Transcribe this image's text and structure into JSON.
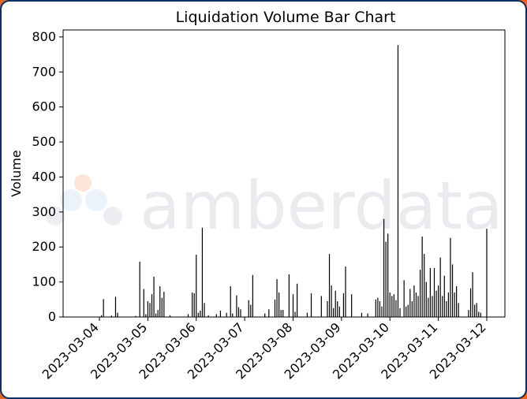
{
  "chart_data": {
    "type": "bar",
    "title": "Liquidation Volume Bar Chart",
    "xlabel": "",
    "ylabel": "Volume",
    "ylim": [
      0,
      820
    ],
    "xlim": [
      "2023-03-03T06:00",
      "2023-03-12T09:00"
    ],
    "yticks": [
      0,
      100,
      200,
      300,
      400,
      500,
      600,
      700,
      800
    ],
    "xticks": [
      "2023-03-04",
      "2023-03-05",
      "2023-03-06",
      "2023-03-07",
      "2023-03-08",
      "2023-03-09",
      "2023-03-10",
      "2023-03-11",
      "2023-03-12"
    ],
    "grid": false,
    "bar_color": "#000000",
    "points": [
      {
        "x": "2023-03-04T01:00",
        "y": 5
      },
      {
        "x": "2023-03-04T02:00",
        "y": 51
      },
      {
        "x": "2023-03-04T06:00",
        "y": 4
      },
      {
        "x": "2023-03-04T08:00",
        "y": 58
      },
      {
        "x": "2023-03-04T09:00",
        "y": 12
      },
      {
        "x": "2023-03-04T18:00",
        "y": 3
      },
      {
        "x": "2023-03-04T20:00",
        "y": 158
      },
      {
        "x": "2023-03-04T22:00",
        "y": 80
      },
      {
        "x": "2023-03-04T23:00",
        "y": 8
      },
      {
        "x": "2023-03-05T00:00",
        "y": 45
      },
      {
        "x": "2023-03-05T01:00",
        "y": 40
      },
      {
        "x": "2023-03-05T02:00",
        "y": 65
      },
      {
        "x": "2023-03-05T03:00",
        "y": 115
      },
      {
        "x": "2023-03-05T04:00",
        "y": 10
      },
      {
        "x": "2023-03-05T05:00",
        "y": 20
      },
      {
        "x": "2023-03-05T06:00",
        "y": 88
      },
      {
        "x": "2023-03-05T07:00",
        "y": 55
      },
      {
        "x": "2023-03-05T08:00",
        "y": 72
      },
      {
        "x": "2023-03-05T11:00",
        "y": 5
      },
      {
        "x": "2023-03-05T20:00",
        "y": 8
      },
      {
        "x": "2023-03-05T22:00",
        "y": 70
      },
      {
        "x": "2023-03-05T23:00",
        "y": 68
      },
      {
        "x": "2023-03-06T00:00",
        "y": 178
      },
      {
        "x": "2023-03-06T01:00",
        "y": 12
      },
      {
        "x": "2023-03-06T02:00",
        "y": 18
      },
      {
        "x": "2023-03-06T03:00",
        "y": 255
      },
      {
        "x": "2023-03-06T04:00",
        "y": 40
      },
      {
        "x": "2023-03-06T06:00",
        "y": 5
      },
      {
        "x": "2023-03-06T10:00",
        "y": 8
      },
      {
        "x": "2023-03-06T12:00",
        "y": 18
      },
      {
        "x": "2023-03-06T15:00",
        "y": 12
      },
      {
        "x": "2023-03-06T17:00",
        "y": 88
      },
      {
        "x": "2023-03-06T18:00",
        "y": 10
      },
      {
        "x": "2023-03-06T20:00",
        "y": 62
      },
      {
        "x": "2023-03-06T21:00",
        "y": 28
      },
      {
        "x": "2023-03-06T22:00",
        "y": 22
      },
      {
        "x": "2023-03-07T02:00",
        "y": 48
      },
      {
        "x": "2023-03-07T03:00",
        "y": 35
      },
      {
        "x": "2023-03-07T04:00",
        "y": 120
      },
      {
        "x": "2023-03-07T10:00",
        "y": 10
      },
      {
        "x": "2023-03-07T12:00",
        "y": 22
      },
      {
        "x": "2023-03-07T15:00",
        "y": 50
      },
      {
        "x": "2023-03-07T16:00",
        "y": 108
      },
      {
        "x": "2023-03-07T17:00",
        "y": 70
      },
      {
        "x": "2023-03-07T18:00",
        "y": 20
      },
      {
        "x": "2023-03-07T19:00",
        "y": 20
      },
      {
        "x": "2023-03-07T22:00",
        "y": 122
      },
      {
        "x": "2023-03-08T00:00",
        "y": 65
      },
      {
        "x": "2023-03-08T01:00",
        "y": 15
      },
      {
        "x": "2023-03-08T02:00",
        "y": 95
      },
      {
        "x": "2023-03-08T07:00",
        "y": 12
      },
      {
        "x": "2023-03-08T09:00",
        "y": 68
      },
      {
        "x": "2023-03-08T14:00",
        "y": 60
      },
      {
        "x": "2023-03-08T17:00",
        "y": 45
      },
      {
        "x": "2023-03-08T18:00",
        "y": 180
      },
      {
        "x": "2023-03-08T19:00",
        "y": 90
      },
      {
        "x": "2023-03-08T20:00",
        "y": 25
      },
      {
        "x": "2023-03-08T21:00",
        "y": 75
      },
      {
        "x": "2023-03-08T22:00",
        "y": 45
      },
      {
        "x": "2023-03-08T23:00",
        "y": 30
      },
      {
        "x": "2023-03-09T01:00",
        "y": 68
      },
      {
        "x": "2023-03-09T02:00",
        "y": 144
      },
      {
        "x": "2023-03-09T05:00",
        "y": 65
      },
      {
        "x": "2023-03-09T10:00",
        "y": 12
      },
      {
        "x": "2023-03-09T13:00",
        "y": 10
      },
      {
        "x": "2023-03-09T17:00",
        "y": 50
      },
      {
        "x": "2023-03-09T18:00",
        "y": 55
      },
      {
        "x": "2023-03-09T19:00",
        "y": 45
      },
      {
        "x": "2023-03-09T20:00",
        "y": 30
      },
      {
        "x": "2023-03-09T21:00",
        "y": 280
      },
      {
        "x": "2023-03-09T22:00",
        "y": 215
      },
      {
        "x": "2023-03-09T23:00",
        "y": 238
      },
      {
        "x": "2023-03-10T00:00",
        "y": 70
      },
      {
        "x": "2023-03-10T01:00",
        "y": 60
      },
      {
        "x": "2023-03-10T02:00",
        "y": 65
      },
      {
        "x": "2023-03-10T03:00",
        "y": 48
      },
      {
        "x": "2023-03-10T04:00",
        "y": 777
      },
      {
        "x": "2023-03-10T05:00",
        "y": 25
      },
      {
        "x": "2023-03-10T07:00",
        "y": 105
      },
      {
        "x": "2023-03-10T08:00",
        "y": 30
      },
      {
        "x": "2023-03-10T09:00",
        "y": 35
      },
      {
        "x": "2023-03-10T10:00",
        "y": 80
      },
      {
        "x": "2023-03-10T11:00",
        "y": 45
      },
      {
        "x": "2023-03-10T12:00",
        "y": 90
      },
      {
        "x": "2023-03-10T13:00",
        "y": 70
      },
      {
        "x": "2023-03-10T14:00",
        "y": 60
      },
      {
        "x": "2023-03-10T15:00",
        "y": 135
      },
      {
        "x": "2023-03-10T16:00",
        "y": 230
      },
      {
        "x": "2023-03-10T17:00",
        "y": 180
      },
      {
        "x": "2023-03-10T18:00",
        "y": 100
      },
      {
        "x": "2023-03-10T19:00",
        "y": 55
      },
      {
        "x": "2023-03-10T20:00",
        "y": 140
      },
      {
        "x": "2023-03-10T21:00",
        "y": 60
      },
      {
        "x": "2023-03-10T22:00",
        "y": 140
      },
      {
        "x": "2023-03-10T23:00",
        "y": 75
      },
      {
        "x": "2023-03-11T00:00",
        "y": 90
      },
      {
        "x": "2023-03-11T01:00",
        "y": 170
      },
      {
        "x": "2023-03-11T02:00",
        "y": 60
      },
      {
        "x": "2023-03-11T03:00",
        "y": 118
      },
      {
        "x": "2023-03-11T04:00",
        "y": 45
      },
      {
        "x": "2023-03-11T05:00",
        "y": 70
      },
      {
        "x": "2023-03-11T06:00",
        "y": 226
      },
      {
        "x": "2023-03-11T07:00",
        "y": 150
      },
      {
        "x": "2023-03-11T08:00",
        "y": 70
      },
      {
        "x": "2023-03-11T09:00",
        "y": 88
      },
      {
        "x": "2023-03-11T10:00",
        "y": 40
      },
      {
        "x": "2023-03-11T15:00",
        "y": 20
      },
      {
        "x": "2023-03-11T16:00",
        "y": 82
      },
      {
        "x": "2023-03-11T17:00",
        "y": 128
      },
      {
        "x": "2023-03-11T18:00",
        "y": 35
      },
      {
        "x": "2023-03-11T19:00",
        "y": 40
      },
      {
        "x": "2023-03-11T20:00",
        "y": 15
      },
      {
        "x": "2023-03-11T21:00",
        "y": 12
      },
      {
        "x": "2023-03-12T00:00",
        "y": 252
      }
    ]
  },
  "watermark": {
    "text": "amberdata",
    "colors": {
      "orange": "#f08a50",
      "blue": "#a9c3e6",
      "navy": "#1c2b5a"
    }
  }
}
